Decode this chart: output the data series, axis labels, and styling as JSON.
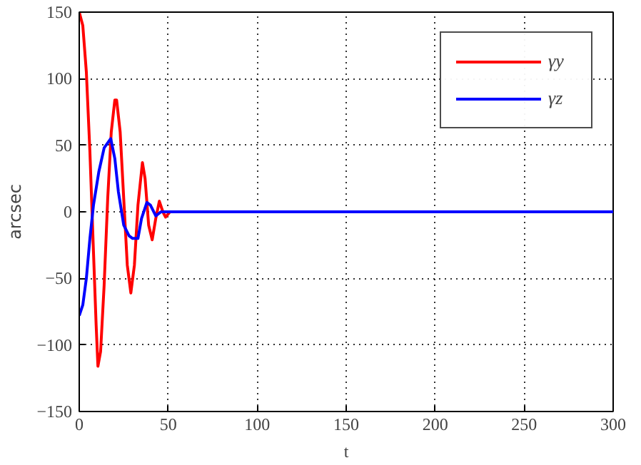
{
  "chart_data": {
    "type": "line",
    "xlabel": "t",
    "ylabel": "arcsec",
    "xlim": [
      0,
      300
    ],
    "ylim": [
      -150,
      150
    ],
    "xticks": [
      0,
      50,
      100,
      150,
      200,
      250,
      300
    ],
    "yticks": [
      -150,
      -100,
      -50,
      0,
      50,
      100,
      150
    ],
    "grid": true,
    "legend": "top right",
    "line_style": "solid",
    "series": [
      {
        "name": "γy",
        "color": "#ff0000",
        "x": [
          0,
          2,
          4,
          6,
          8,
          9.5,
          10.5,
          12,
          14,
          16,
          18,
          20,
          21,
          23,
          25,
          27,
          29,
          31,
          33,
          35.5,
          37,
          39,
          41,
          43,
          45,
          47,
          48.5,
          51,
          60,
          300
        ],
        "values": [
          150,
          140,
          105,
          45,
          -30,
          -85,
          -116,
          -105,
          -55,
          10,
          60,
          84,
          84,
          60,
          10,
          -40,
          -61,
          -40,
          5,
          37,
          25,
          -10,
          -21,
          -5,
          8,
          0,
          -4,
          0,
          0,
          0
        ]
      },
      {
        "name": "γz",
        "color": "#0000ff",
        "x": [
          0,
          2,
          4,
          6,
          8,
          11,
          14,
          17.7,
          20,
          22,
          25,
          28,
          30,
          33,
          35,
          38,
          40,
          43,
          46,
          60,
          300
        ],
        "values": [
          -78,
          -70,
          -50,
          -20,
          5,
          30,
          48,
          55,
          40,
          15,
          -10,
          -18,
          -20,
          -20,
          -5,
          7,
          5,
          -3,
          0,
          0,
          0
        ]
      }
    ]
  }
}
